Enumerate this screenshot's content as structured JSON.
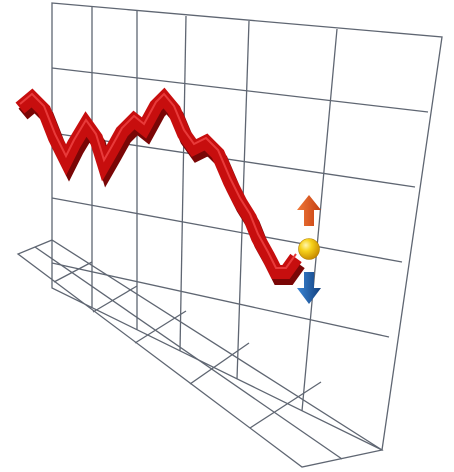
{
  "illustration": {
    "subject": "3d-line-graph-on-wireframe-grid",
    "colors": {
      "grid": "#5f6672",
      "ribbon": "#c70e0e",
      "ribbon_side": "#7a0606",
      "up_arrow": "#e2561e",
      "down_arrow": "#1d5fad",
      "ball": "#f5c400"
    },
    "icons": [
      "up-arrow-icon",
      "down-arrow-icon",
      "indicator-ball-icon"
    ]
  }
}
